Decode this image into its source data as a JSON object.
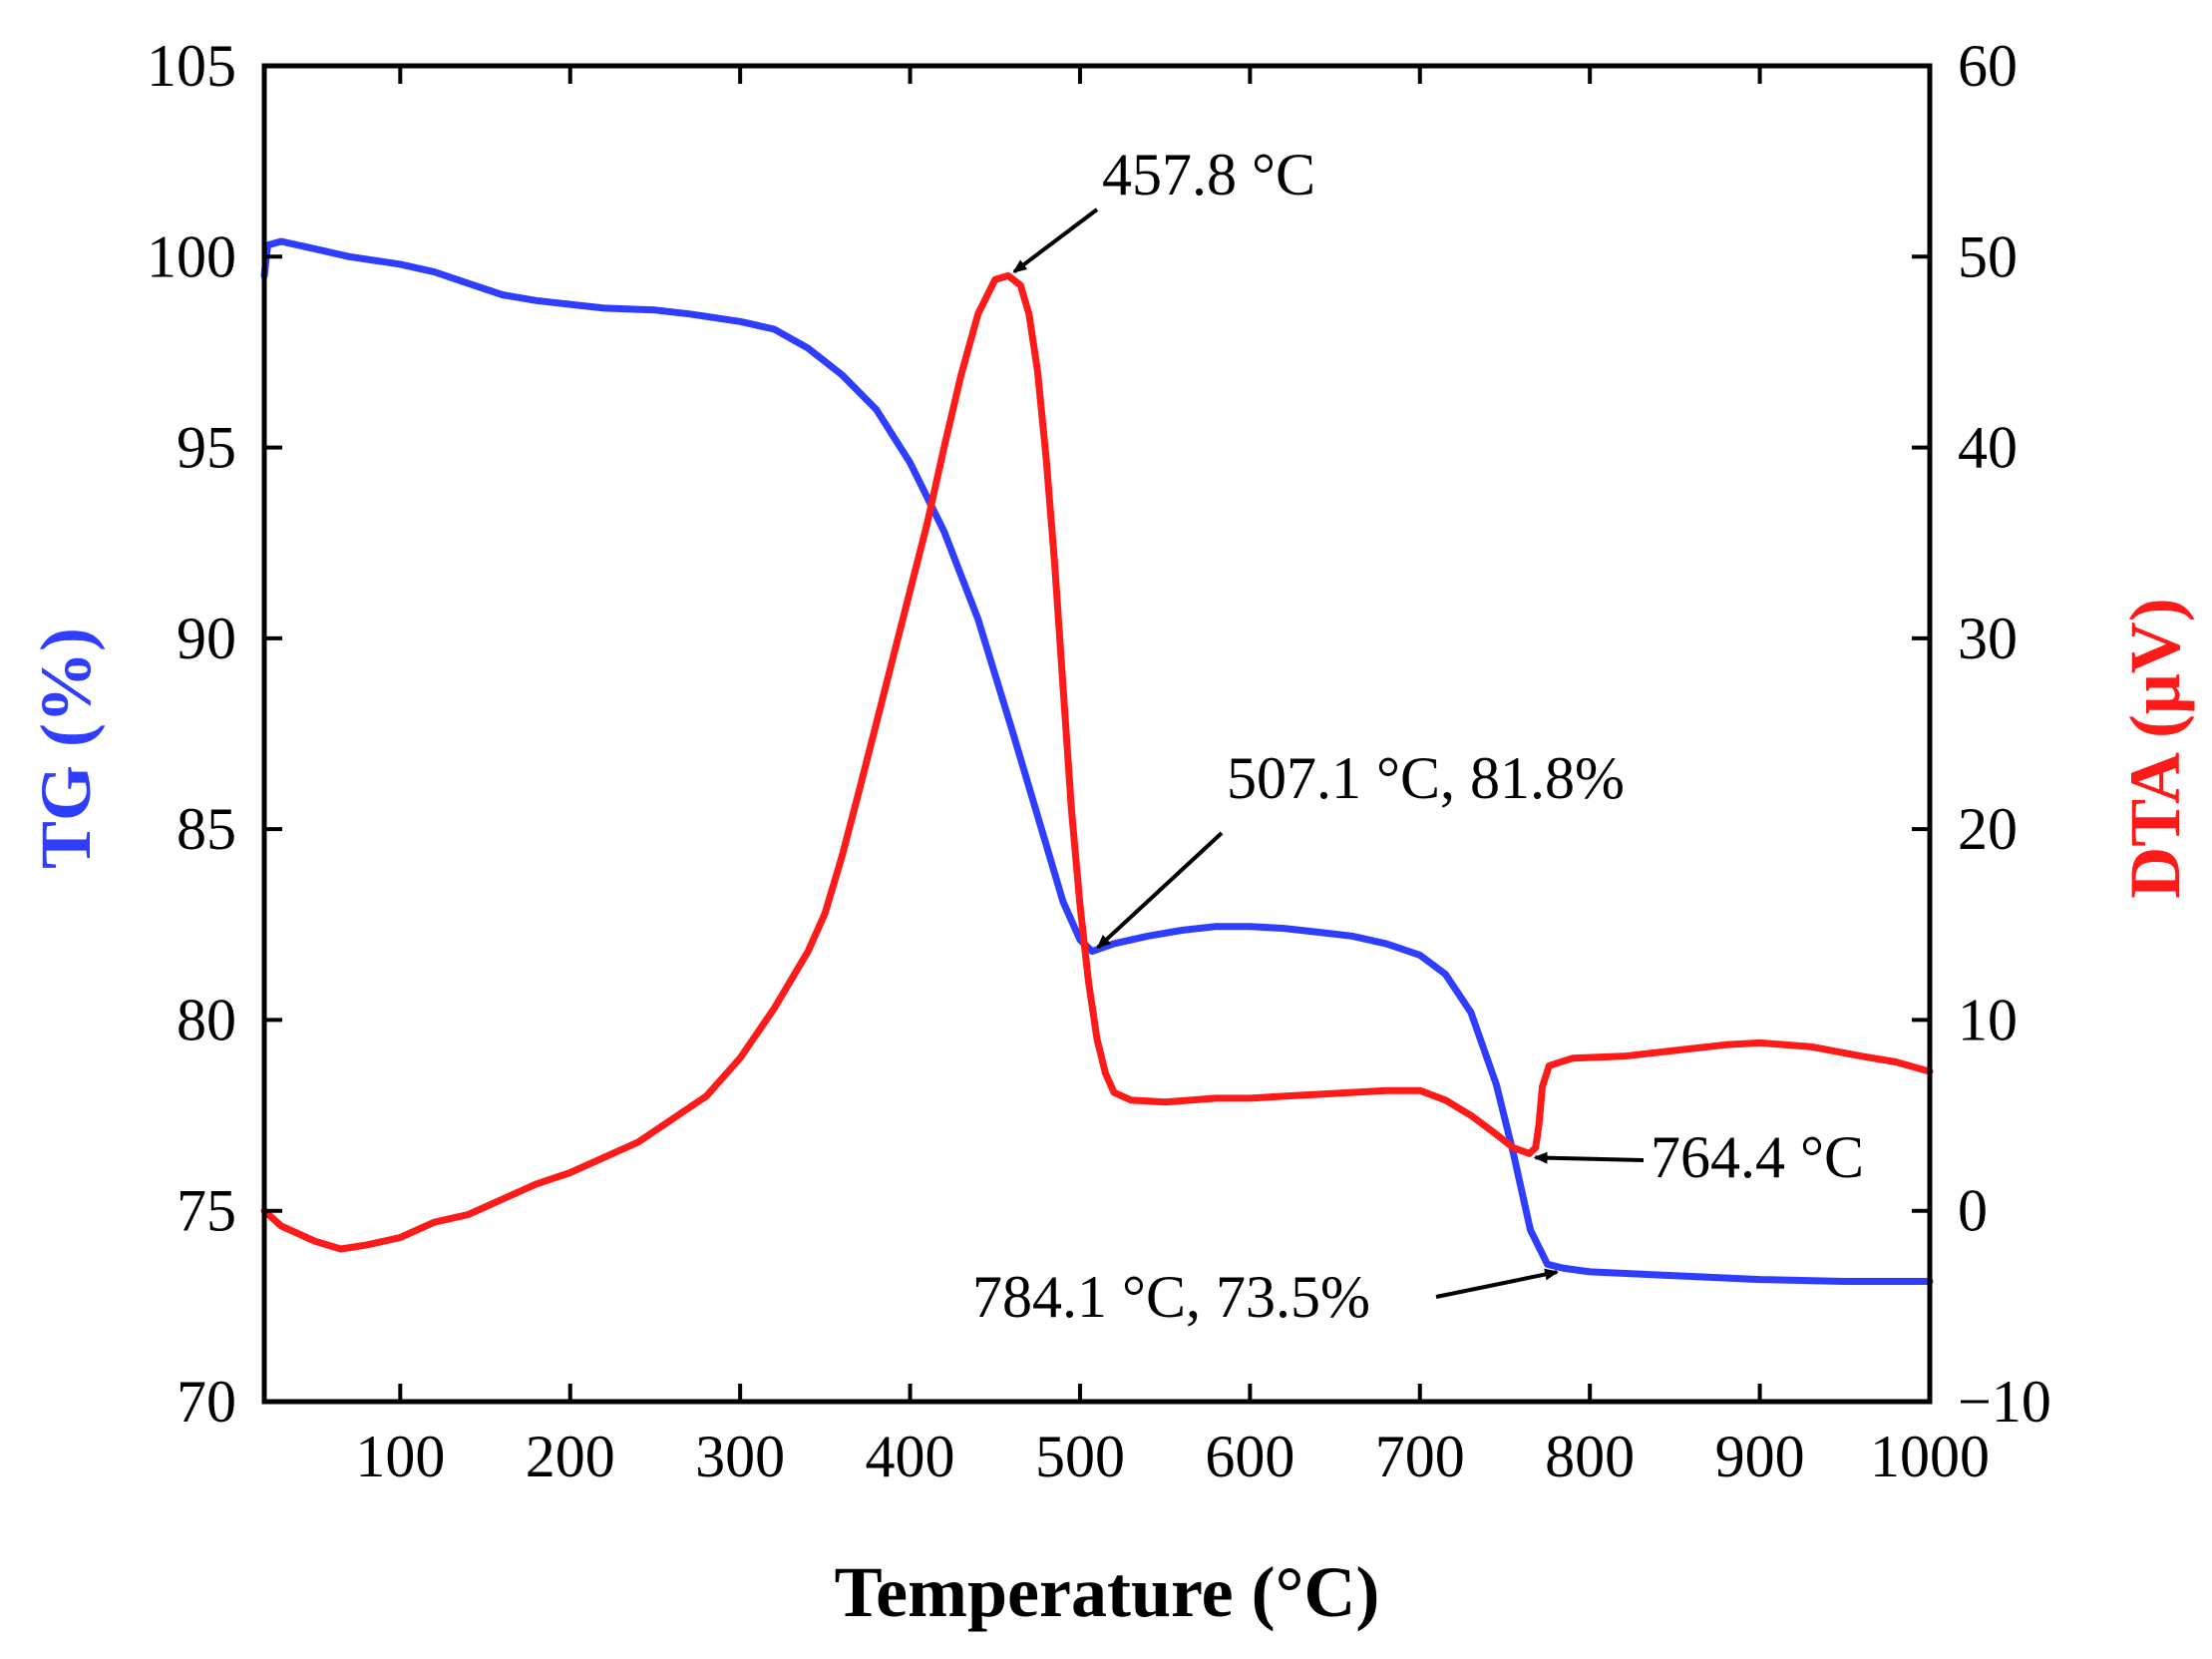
{
  "chart_data": {
    "type": "line",
    "title": "",
    "xlabel": "Temperature (°C)",
    "ylabel_left": "TG (%)",
    "ylabel_right": "DTA (μV)",
    "xlim": [
      20,
      1000
    ],
    "ylim_left": [
      70,
      105
    ],
    "ylim_right": [
      -10,
      60
    ],
    "x_ticks": [
      100,
      200,
      300,
      400,
      500,
      600,
      700,
      800,
      900,
      1000
    ],
    "y_left_ticks": [
      70,
      75,
      80,
      85,
      90,
      95,
      100,
      105
    ],
    "y_right_ticks": [
      -10,
      0,
      10,
      20,
      30,
      40,
      50,
      60
    ],
    "x_tick_labels": [
      "100",
      "200",
      "300",
      "400",
      "500",
      "600",
      "700",
      "800",
      "900",
      "1000"
    ],
    "y_left_tick_labels": [
      "70",
      "75",
      "80",
      "85",
      "90",
      "95",
      "100",
      "105"
    ],
    "y_right_tick_labels": [
      "−10",
      "0",
      "10",
      "20",
      "30",
      "40",
      "50",
      "60"
    ],
    "colors": {
      "tg": "#2f3dff",
      "dta": "#ff1a1a",
      "axis": "#000000"
    },
    "series": [
      {
        "name": "TG",
        "axis": "left",
        "points": [
          [
            20,
            99.5
          ],
          [
            22,
            100.3
          ],
          [
            30,
            100.4
          ],
          [
            40,
            100.3
          ],
          [
            50,
            100.2
          ],
          [
            70,
            100.0
          ],
          [
            100,
            99.8
          ],
          [
            120,
            99.6
          ],
          [
            140,
            99.3
          ],
          [
            160,
            99.0
          ],
          [
            180,
            98.85
          ],
          [
            200,
            98.75
          ],
          [
            220,
            98.65
          ],
          [
            250,
            98.6
          ],
          [
            270,
            98.5
          ],
          [
            300,
            98.3
          ],
          [
            320,
            98.1
          ],
          [
            340,
            97.6
          ],
          [
            360,
            96.9
          ],
          [
            380,
            96.0
          ],
          [
            400,
            94.6
          ],
          [
            420,
            92.8
          ],
          [
            440,
            90.5
          ],
          [
            460,
            87.6
          ],
          [
            480,
            84.6
          ],
          [
            490,
            83.1
          ],
          [
            500,
            82.1
          ],
          [
            507.1,
            81.8
          ],
          [
            520,
            82.0
          ],
          [
            540,
            82.2
          ],
          [
            560,
            82.35
          ],
          [
            580,
            82.45
          ],
          [
            600,
            82.45
          ],
          [
            620,
            82.4
          ],
          [
            640,
            82.3
          ],
          [
            660,
            82.2
          ],
          [
            680,
            82.0
          ],
          [
            700,
            81.7
          ],
          [
            715,
            81.2
          ],
          [
            730,
            80.2
          ],
          [
            745,
            78.3
          ],
          [
            755,
            76.5
          ],
          [
            765,
            74.5
          ],
          [
            775,
            73.6
          ],
          [
            784.1,
            73.5
          ],
          [
            800,
            73.4
          ],
          [
            850,
            73.3
          ],
          [
            900,
            73.2
          ],
          [
            950,
            73.15
          ],
          [
            1000,
            73.15
          ]
        ]
      },
      {
        "name": "DTA",
        "axis": "right",
        "points": [
          [
            20,
            0
          ],
          [
            30,
            -0.8
          ],
          [
            50,
            -1.6
          ],
          [
            65,
            -2.0
          ],
          [
            80,
            -1.8
          ],
          [
            100,
            -1.4
          ],
          [
            120,
            -0.6
          ],
          [
            140,
            -0.2
          ],
          [
            160,
            0.6
          ],
          [
            180,
            1.4
          ],
          [
            200,
            2.0
          ],
          [
            220,
            2.8
          ],
          [
            240,
            3.6
          ],
          [
            260,
            4.8
          ],
          [
            280,
            6.0
          ],
          [
            300,
            8.0
          ],
          [
            320,
            10.6
          ],
          [
            340,
            13.6
          ],
          [
            350,
            15.6
          ],
          [
            360,
            18.6
          ],
          [
            370,
            22.0
          ],
          [
            380,
            25.5
          ],
          [
            390,
            29.0
          ],
          [
            400,
            32.5
          ],
          [
            410,
            36.0
          ],
          [
            420,
            40.0
          ],
          [
            430,
            43.8
          ],
          [
            440,
            47.0
          ],
          [
            450,
            48.8
          ],
          [
            457.8,
            49.0
          ],
          [
            465,
            48.5
          ],
          [
            470,
            47.0
          ],
          [
            475,
            44.0
          ],
          [
            480,
            39.5
          ],
          [
            485,
            34.0
          ],
          [
            490,
            27.5
          ],
          [
            495,
            21.0
          ],
          [
            500,
            16.0
          ],
          [
            505,
            12.0
          ],
          [
            510,
            9.0
          ],
          [
            515,
            7.2
          ],
          [
            520,
            6.2
          ],
          [
            530,
            5.8
          ],
          [
            550,
            5.7
          ],
          [
            580,
            5.9
          ],
          [
            600,
            5.9
          ],
          [
            620,
            6.0
          ],
          [
            640,
            6.1
          ],
          [
            660,
            6.2
          ],
          [
            680,
            6.3
          ],
          [
            700,
            6.3
          ],
          [
            715,
            5.8
          ],
          [
            730,
            5.0
          ],
          [
            745,
            4.0
          ],
          [
            755,
            3.3
          ],
          [
            764.4,
            3.0
          ],
          [
            768,
            3.3
          ],
          [
            770,
            4.5
          ],
          [
            772,
            6.5
          ],
          [
            776,
            7.6
          ],
          [
            790,
            8.0
          ],
          [
            820,
            8.1
          ],
          [
            850,
            8.4
          ],
          [
            880,
            8.7
          ],
          [
            900,
            8.8
          ],
          [
            930,
            8.6
          ],
          [
            960,
            8.1
          ],
          [
            980,
            7.8
          ],
          [
            1000,
            7.3
          ]
        ]
      }
    ],
    "annotations": [
      {
        "text": "457.8 °C",
        "series": "DTA",
        "x": 457.8,
        "y": 49.0
      },
      {
        "text": "507.1 °C, 81.8%",
        "series": "TG",
        "x": 507.1,
        "y": 81.8
      },
      {
        "text": "764.4 °C",
        "series": "DTA",
        "x": 764.4,
        "y": 3.0
      },
      {
        "text": "784.1 °C, 73.5%",
        "series": "TG",
        "x": 784.1,
        "y": 73.5
      }
    ]
  }
}
